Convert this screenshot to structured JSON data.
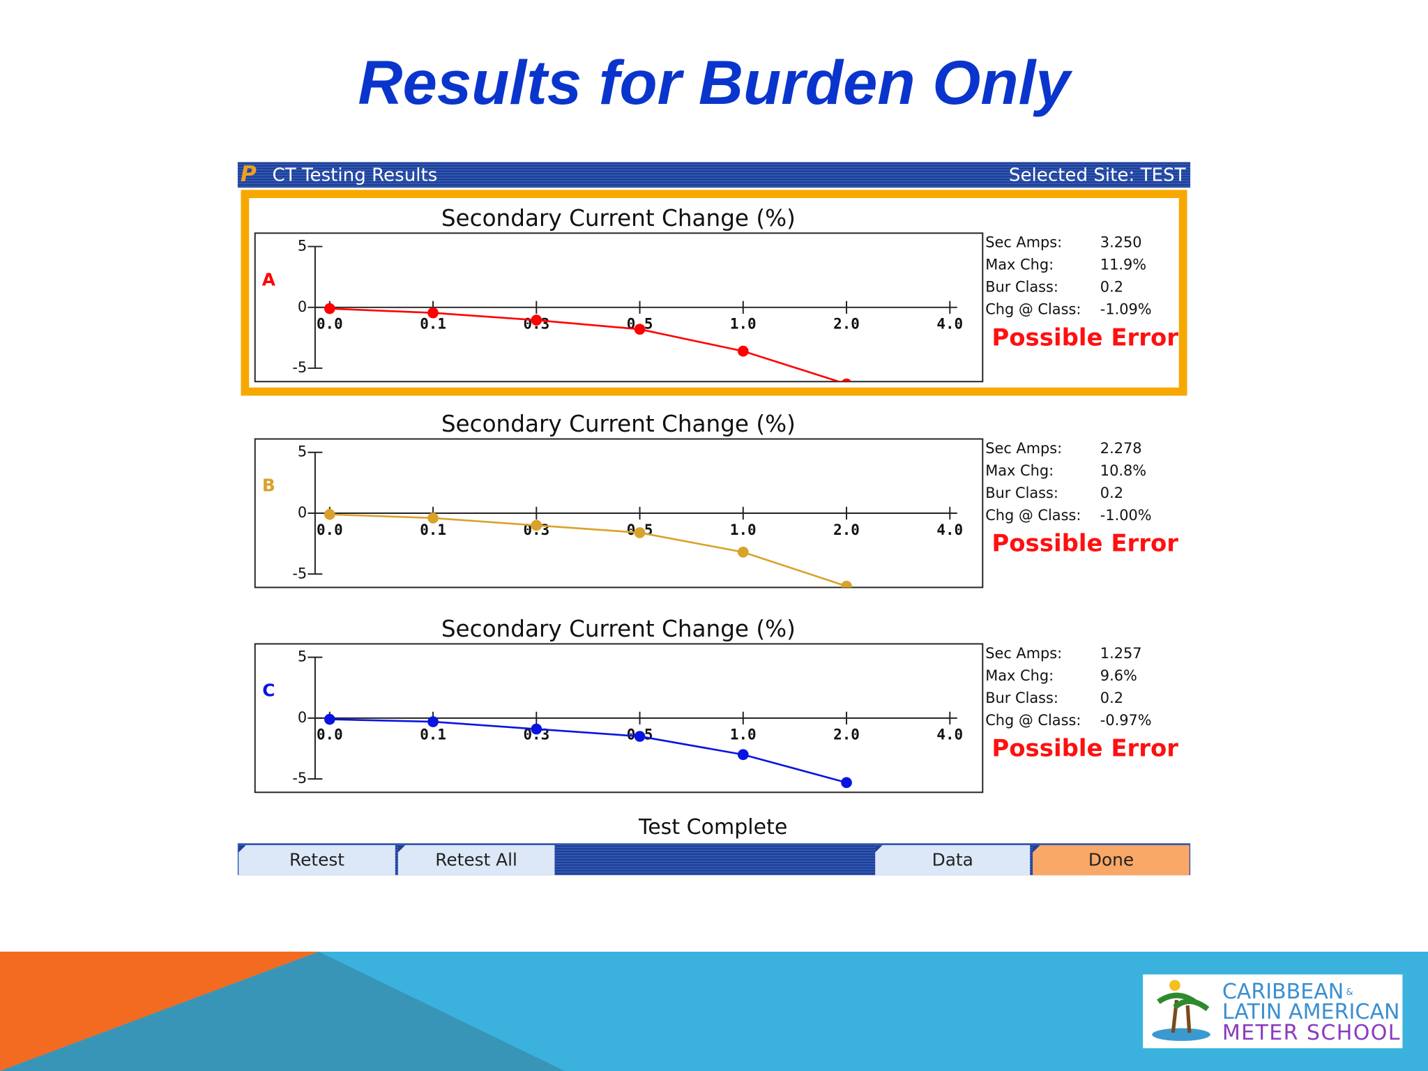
{
  "slide_title": "Results for Burden Only",
  "window": {
    "title": "CT Testing Results",
    "site": "Selected Site: TEST"
  },
  "chart_data": [
    {
      "type": "line",
      "title": "Secondary Current Change (%)",
      "categories": [
        "0.0",
        "0.1",
        "0.3",
        "0.5",
        "1.0",
        "2.0",
        "4.0"
      ],
      "series": [
        {
          "name": "A",
          "color": "#ff0000",
          "values": [
            -0.1,
            -0.45,
            -1.05,
            -1.8,
            -3.6,
            -6.3,
            null
          ]
        }
      ],
      "ylim": [
        -6.1,
        6.1
      ],
      "yticks": [
        5,
        0,
        -5
      ]
    },
    {
      "type": "line",
      "title": "Secondary Current Change (%)",
      "categories": [
        "0.0",
        "0.1",
        "0.3",
        "0.5",
        "1.0",
        "2.0",
        "4.0"
      ],
      "series": [
        {
          "name": "B",
          "color": "#d9a22a",
          "values": [
            -0.1,
            -0.4,
            -1.0,
            -1.6,
            -3.2,
            -6.0,
            null
          ]
        }
      ],
      "ylim": [
        -6.1,
        6.1
      ],
      "yticks": [
        5,
        0,
        -5
      ]
    },
    {
      "type": "line",
      "title": "Secondary Current Change (%)",
      "categories": [
        "0.0",
        "0.1",
        "0.3",
        "0.5",
        "1.0",
        "2.0",
        "4.0"
      ],
      "series": [
        {
          "name": "C",
          "color": "#0a14e0",
          "values": [
            -0.1,
            -0.3,
            -0.9,
            -1.5,
            -3.0,
            -5.3,
            null
          ]
        }
      ],
      "ylim": [
        -6.1,
        6.1
      ],
      "yticks": [
        5,
        0,
        -5
      ]
    }
  ],
  "panels": [
    {
      "fields": [
        {
          "name": "Sec Amps:",
          "value": "3.250"
        },
        {
          "name": "Max Chg:",
          "value": "11.9%"
        },
        {
          "name": "Bur Class:",
          "value": "0.2"
        },
        {
          "name": "Chg @ Class:",
          "value": "-1.09%"
        }
      ],
      "status": "Possible Error"
    },
    {
      "fields": [
        {
          "name": "Sec Amps:",
          "value": "2.278"
        },
        {
          "name": "Max Chg:",
          "value": "10.8%"
        },
        {
          "name": "Bur Class:",
          "value": "0.2"
        },
        {
          "name": "Chg @ Class:",
          "value": "-1.00%"
        }
      ],
      "status": "Possible Error"
    },
    {
      "fields": [
        {
          "name": "Sec Amps:",
          "value": "1.257"
        },
        {
          "name": "Max Chg:",
          "value": "9.6%"
        },
        {
          "name": "Bur Class:",
          "value": "0.2"
        },
        {
          "name": "Chg @ Class:",
          "value": "-0.97%"
        }
      ],
      "status": "Possible Error"
    }
  ],
  "footer_status": "Test Complete",
  "buttons": [
    "Retest",
    "Retest All",
    "Data",
    "Done"
  ],
  "logo": [
    "CARIBBEAN",
    "&",
    "LATIN AMERICAN",
    "METER SCHOOL"
  ]
}
